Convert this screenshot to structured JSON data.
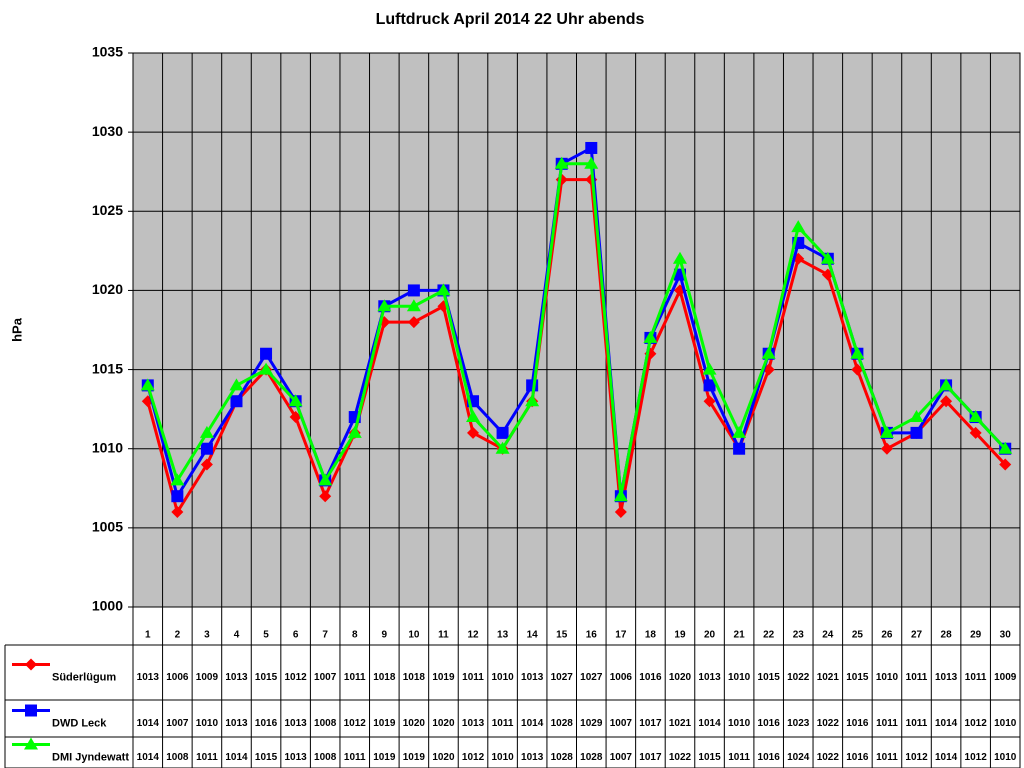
{
  "chart_data": {
    "type": "line",
    "title": "Luftdruck April 2014 22 Uhr abends",
    "y_label": "hPa",
    "categories": [
      "1",
      "2",
      "3",
      "4",
      "5",
      "6",
      "7",
      "8",
      "9",
      "10",
      "11",
      "12",
      "13",
      "14",
      "15",
      "16",
      "17",
      "18",
      "19",
      "20",
      "21",
      "22",
      "23",
      "24",
      "25",
      "26",
      "27",
      "28",
      "29",
      "30"
    ],
    "ylim": [
      1000,
      1035
    ],
    "yticks": [
      1000,
      1005,
      1010,
      1015,
      1020,
      1025,
      1030,
      1035
    ],
    "grid": true,
    "data_table": true,
    "series": [
      {
        "name": "Süderlügum",
        "color": "#ff0000",
        "marker": "diamond",
        "values": [
          1013,
          1006,
          1009,
          1013,
          1015,
          1012,
          1007,
          1011,
          1018,
          1018,
          1019,
          1011,
          1010,
          1013,
          1027,
          1027,
          1006,
          1016,
          1020,
          1013,
          1010,
          1015,
          1022,
          1021,
          1015,
          1010,
          1011,
          1013,
          1011,
          1009
        ]
      },
      {
        "name": "DWD Leck",
        "color": "#0000ff",
        "marker": "square",
        "values": [
          1014,
          1007,
          1010,
          1013,
          1016,
          1013,
          1008,
          1012,
          1019,
          1020,
          1020,
          1013,
          1011,
          1014,
          1028,
          1029,
          1007,
          1017,
          1021,
          1014,
          1010,
          1016,
          1023,
          1022,
          1016,
          1011,
          1011,
          1014,
          1012,
          1010
        ]
      },
      {
        "name": "DMI Jyndewatt",
        "color": "#00ff00",
        "marker": "triangle",
        "values": [
          1014,
          1008,
          1011,
          1014,
          1015,
          1013,
          1008,
          1011,
          1019,
          1019,
          1020,
          1012,
          1010,
          1013,
          1028,
          1028,
          1007,
          1017,
          1022,
          1015,
          1011,
          1016,
          1024,
          1022,
          1016,
          1011,
          1012,
          1014,
          1012,
          1010
        ]
      }
    ]
  }
}
